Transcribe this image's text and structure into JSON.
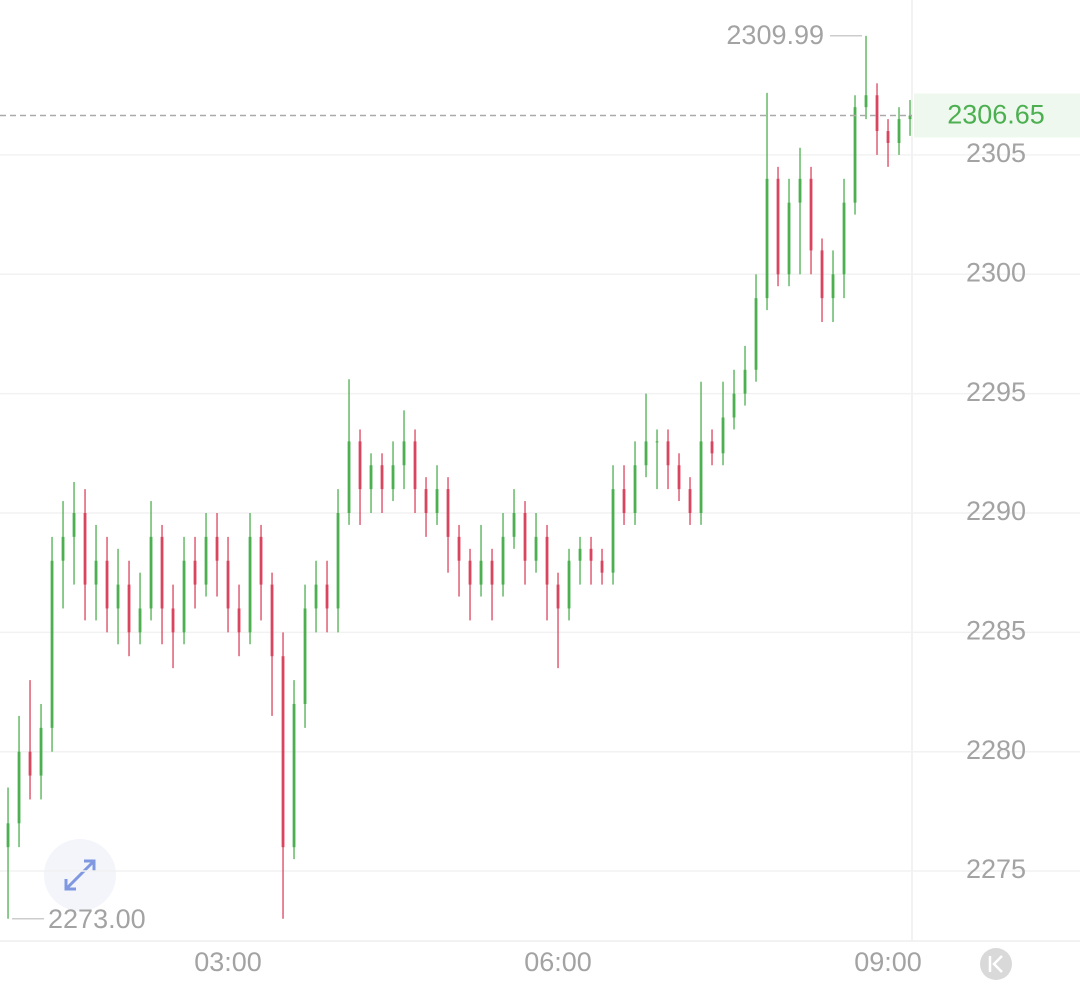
{
  "chart_data": {
    "type": "candlestick",
    "up_color": "#4caf50",
    "down_color": "#d9455f",
    "xlim": [
      -0.73,
      82.18
    ],
    "xticks": [
      {
        "value": 20,
        "label": "03:00"
      },
      {
        "value": 50,
        "label": "06:00"
      },
      {
        "value": 80,
        "label": "09:00"
      }
    ],
    "ylim": [
      2272.07,
      2311.49
    ],
    "yticks": [
      2275,
      2280,
      2285,
      2290,
      2295,
      2300,
      2305
    ],
    "grid": true,
    "max_label": {
      "index": 78,
      "value": 2309.99,
      "label": "2309.99"
    },
    "min_label": {
      "index": 0,
      "value": 2273,
      "label": "2273.00"
    },
    "last_price": 2306.65,
    "open": [
      2276,
      2277,
      2280,
      2279,
      2281,
      2288,
      2289,
      2290,
      2287,
      2288,
      2286,
      2287,
      2285,
      2286,
      2289,
      2286,
      2285,
      2288,
      2287,
      2289,
      2288,
      2286,
      2285,
      2289,
      2287,
      2284,
      2276,
      2282,
      2286,
      2287,
      2286,
      2290,
      2293,
      2291,
      2292,
      2291,
      2292,
      2293,
      2291,
      2290,
      2291,
      2289,
      2288,
      2287,
      2288,
      2287,
      2289,
      2290,
      2288,
      2289,
      2287,
      2286,
      2288,
      2288.5,
      2288,
      2287.5,
      2291,
      2290,
      2292,
      2293,
      2293,
      2292,
      2291,
      2290,
      2293,
      2292.5,
      2294,
      2295,
      2296,
      2299,
      2304,
      2300,
      2303,
      2304,
      2301,
      2299,
      2300,
      2303,
      2307,
      2307.5,
      2306,
      2305.5,
      2306.5
    ],
    "high": [
      2278.5,
      2281.5,
      2283,
      2282,
      2289,
      2290.5,
      2291.3,
      2291,
      2289.5,
      2289,
      2288.5,
      2288,
      2287.5,
      2290.5,
      2289.5,
      2287,
      2289,
      2289,
      2290,
      2290,
      2289,
      2287,
      2290,
      2289.5,
      2287.5,
      2285,
      2283,
      2287,
      2288,
      2288,
      2291,
      2295.6,
      2293.5,
      2292.5,
      2292.5,
      2293,
      2294.3,
      2293.5,
      2291.5,
      2292,
      2291.5,
      2289.5,
      2288.5,
      2289.5,
      2288.5,
      2290,
      2291,
      2290.5,
      2290,
      2289.5,
      2287.5,
      2288.5,
      2289,
      2289,
      2288.5,
      2292,
      2292,
      2293,
      2295,
      2293.5,
      2293.5,
      2292.5,
      2291.5,
      2295.5,
      2293.5,
      2295.5,
      2296,
      2297,
      2300,
      2307.6,
      2304.5,
      2304,
      2305.3,
      2304.5,
      2301.5,
      2301,
      2304,
      2307.5,
      2309.99,
      2308,
      2306.5,
      2307,
      2307.3
    ],
    "low": [
      2273,
      2276,
      2278,
      2278,
      2280,
      2286,
      2287,
      2285.5,
      2285.5,
      2285,
      2284.5,
      2284,
      2284.5,
      2285.5,
      2284.5,
      2283.5,
      2284.5,
      2286,
      2286.5,
      2286.5,
      2285,
      2284,
      2284.5,
      2285.5,
      2281.5,
      2273,
      2275.5,
      2281,
      2285,
      2285,
      2285,
      2289.5,
      2289.5,
      2290,
      2290,
      2290.5,
      2291,
      2290,
      2289,
      2289.5,
      2287.5,
      2286.5,
      2285.5,
      2286.5,
      2285.5,
      2286.5,
      2288.5,
      2287,
      2287.5,
      2285.5,
      2283.5,
      2285.5,
      2287,
      2287,
      2287,
      2287,
      2289.5,
      2289.5,
      2291.5,
      2291,
      2291,
      2290.5,
      2289.5,
      2289.5,
      2292,
      2292,
      2293.5,
      2294.5,
      2295.5,
      2298.5,
      2299.5,
      2299.5,
      2300,
      2300,
      2298,
      2298,
      2299,
      2302.5,
      2306.5,
      2305,
      2304.5,
      2305,
      2305.8
    ],
    "close": [
      2277,
      2280,
      2279,
      2281,
      2288,
      2289,
      2290,
      2287,
      2288,
      2286,
      2287,
      2285,
      2286,
      2289,
      2286,
      2285,
      2288,
      2287,
      2289,
      2288,
      2286,
      2285,
      2289,
      2287,
      2284,
      2276,
      2282,
      2286,
      2287,
      2286,
      2290,
      2293,
      2291,
      2292,
      2291,
      2292,
      2293,
      2291,
      2290,
      2291,
      2289,
      2288,
      2287,
      2288,
      2287,
      2289,
      2290,
      2288,
      2289,
      2287,
      2286,
      2288,
      2288.5,
      2288,
      2287.5,
      2291,
      2290,
      2292,
      2293,
      2293,
      2292,
      2291,
      2290,
      2293,
      2292.5,
      2294,
      2295,
      2296,
      2299,
      2304,
      2300,
      2303,
      2304,
      2301,
      2299,
      2300,
      2303,
      2307,
      2307.5,
      2306,
      2305.5,
      2306.5,
      2306.65
    ]
  }
}
